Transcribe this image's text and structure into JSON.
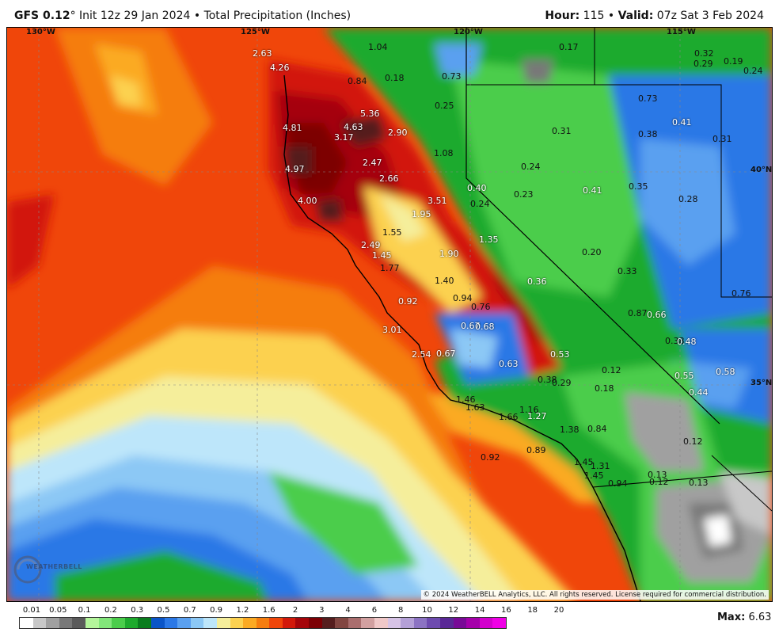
{
  "header": {
    "model": "GFS 0.12",
    "degree": "°",
    "init": "Init 12z 29 Jan 2024",
    "bullet": "•",
    "product": "Total Precipitation (Inches)",
    "hour_label": "Hour:",
    "hour_value": "115",
    "valid_label": "Valid:",
    "valid_value": "07z Sat 3 Feb 2024"
  },
  "coords": {
    "lon1": "130°W",
    "lon2": "125°W",
    "lon3": "120°W",
    "lon4": "115°W",
    "lat1": "40°N",
    "lat2": "35°N"
  },
  "values": [
    {
      "t": "2.63",
      "c": "w"
    },
    {
      "t": "4.26",
      "c": "w"
    },
    {
      "t": "1.04",
      "c": "k"
    },
    {
      "t": "0.17",
      "c": "k"
    },
    {
      "t": "0.32",
      "c": "k"
    },
    {
      "t": "0.29",
      "c": "k"
    },
    {
      "t": "0.19",
      "c": "k"
    },
    {
      "t": "0.24",
      "c": "k"
    },
    {
      "t": "0.84",
      "c": "k"
    },
    {
      "t": "0.18",
      "c": "k"
    },
    {
      "t": "0.73",
      "c": "k"
    },
    {
      "t": "0.25",
      "c": "k"
    },
    {
      "t": "0.73",
      "c": "k"
    },
    {
      "t": "5.36",
      "c": "w"
    },
    {
      "t": "4.63",
      "c": "w"
    },
    {
      "t": "4.81",
      "c": "w"
    },
    {
      "t": "3.17",
      "c": "w"
    },
    {
      "t": "2.90",
      "c": "w"
    },
    {
      "t": "0.31",
      "c": "k"
    },
    {
      "t": "0.38",
      "c": "k"
    },
    {
      "t": "0.41",
      "c": "w"
    },
    {
      "t": "0.31",
      "c": "k"
    },
    {
      "t": "1.08",
      "c": "k"
    },
    {
      "t": "2.47",
      "c": "w"
    },
    {
      "t": "4.97",
      "c": "w"
    },
    {
      "t": "0.24",
      "c": "k"
    },
    {
      "t": "2.66",
      "c": "w"
    },
    {
      "t": "0.40",
      "c": "w"
    },
    {
      "t": "0.23",
      "c": "k"
    },
    {
      "t": "0.41",
      "c": "w"
    },
    {
      "t": "0.35",
      "c": "k"
    },
    {
      "t": "0.28",
      "c": "k"
    },
    {
      "t": "4.00",
      "c": "w"
    },
    {
      "t": "3.51",
      "c": "w"
    },
    {
      "t": "0.24",
      "c": "k"
    },
    {
      "t": "1.95",
      "c": "w"
    },
    {
      "t": "1.55",
      "c": "k"
    },
    {
      "t": "1.35",
      "c": "w"
    },
    {
      "t": "2.49",
      "c": "w"
    },
    {
      "t": "1.45",
      "c": "w"
    },
    {
      "t": "1.90",
      "c": "w"
    },
    {
      "t": "0.20",
      "c": "k"
    },
    {
      "t": "1.77",
      "c": "k"
    },
    {
      "t": "0.33",
      "c": "k"
    },
    {
      "t": "1.40",
      "c": "k"
    },
    {
      "t": "0.36",
      "c": "w"
    },
    {
      "t": "0.94",
      "c": "k"
    },
    {
      "t": "0.76",
      "c": "k"
    },
    {
      "t": "0.92",
      "c": "w"
    },
    {
      "t": "0.76",
      "c": "k"
    },
    {
      "t": "0.87",
      "c": "k"
    },
    {
      "t": "0.66",
      "c": "w"
    },
    {
      "t": "0.67",
      "c": "w"
    },
    {
      "t": "0.68",
      "c": "w"
    },
    {
      "t": "3.01",
      "c": "w"
    },
    {
      "t": "0.38",
      "c": "k"
    },
    {
      "t": "0.48",
      "c": "w"
    },
    {
      "t": "2.54",
      "c": "w"
    },
    {
      "t": "0.67",
      "c": "w"
    },
    {
      "t": "0.53",
      "c": "w"
    },
    {
      "t": "0.63",
      "c": "w"
    },
    {
      "t": "0.12",
      "c": "k"
    },
    {
      "t": "0.55",
      "c": "w"
    },
    {
      "t": "0.58",
      "c": "w"
    },
    {
      "t": "0.38",
      "c": "k"
    },
    {
      "t": "0.29",
      "c": "k"
    },
    {
      "t": "0.18",
      "c": "k"
    },
    {
      "t": "0.44",
      "c": "w"
    },
    {
      "t": "1.46",
      "c": "k"
    },
    {
      "t": "1.63",
      "c": "k"
    },
    {
      "t": "1.16",
      "c": "k"
    },
    {
      "t": "1.66",
      "c": "k"
    },
    {
      "t": "1.27",
      "c": "w"
    },
    {
      "t": "1.38",
      "c": "k"
    },
    {
      "t": "0.84",
      "c": "k"
    },
    {
      "t": "0.12",
      "c": "k"
    },
    {
      "t": "0.92",
      "c": "k"
    },
    {
      "t": "0.89",
      "c": "k"
    },
    {
      "t": "1.45",
      "c": "k"
    },
    {
      "t": "1.31",
      "c": "k"
    },
    {
      "t": "1.45",
      "c": "k"
    },
    {
      "t": "0.13",
      "c": "k"
    },
    {
      "t": "0.94",
      "c": "k"
    },
    {
      "t": "0.12",
      "c": "k"
    },
    {
      "t": "0.13",
      "c": "k"
    }
  ],
  "legend": {
    "ticks": [
      "0.01",
      "0.05",
      "0.1",
      "0.2",
      "0.3",
      "0.5",
      "0.7",
      "0.9",
      "1.2",
      "1.6",
      "2",
      "3",
      "4",
      "6",
      "8",
      "10",
      "12",
      "14",
      "16",
      "18",
      "20"
    ],
    "colors": [
      "#ffffff",
      "#c8c8c8",
      "#a0a0a0",
      "#787878",
      "#5a5a5a",
      "#b4f59b",
      "#82e67a",
      "#4bcd4b",
      "#1eaa2d",
      "#0a7d1e",
      "#0a55c8",
      "#2b78e6",
      "#5aa0f0",
      "#8cc8f5",
      "#bde6fa",
      "#f5ee9b",
      "#fcd150",
      "#fbaa23",
      "#f57d0f",
      "#f0460a",
      "#d2190a",
      "#a5050a",
      "#7d0005",
      "#551e1e",
      "#824641",
      "#aa6e6e",
      "#d2a0a0",
      "#f0c8c8",
      "#d7c3e6",
      "#b4a0d7",
      "#8c73c3",
      "#6e4baf",
      "#5a2896",
      "#780a96",
      "#a500aa",
      "#d200cd",
      "#f000e6"
    ],
    "max_label": "Max:",
    "max_value": "6.63"
  },
  "copyright": "© 2024 WeatherBELL Analytics, LLC. All rights reserved. License required for commercial distribution.",
  "logo_text": "WEATHERBELL"
}
